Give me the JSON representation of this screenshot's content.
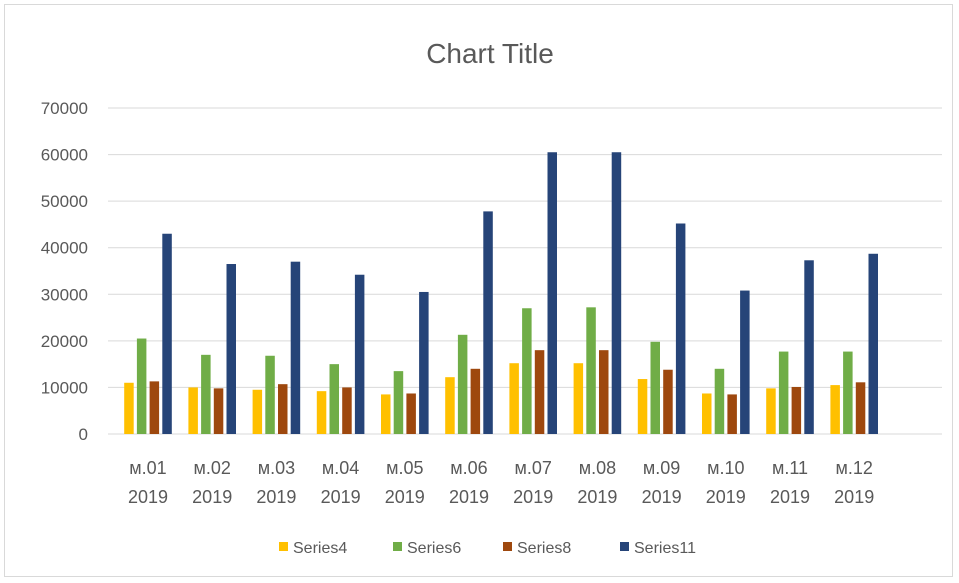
{
  "chart_data": {
    "type": "bar",
    "title": "Chart Title",
    "xlabel": "",
    "ylabel": "",
    "ylim": [
      0,
      70000
    ],
    "yticks": [
      0,
      10000,
      20000,
      30000,
      40000,
      50000,
      60000,
      70000
    ],
    "ytick_labels": [
      "0",
      "10000",
      "20000",
      "30000",
      "40000",
      "50000",
      "60000",
      "70000"
    ],
    "grid": true,
    "legend_position": "bottom",
    "categories": [
      [
        "м.01",
        "2019"
      ],
      [
        "м.02",
        "2019"
      ],
      [
        "м.03",
        "2019"
      ],
      [
        "м.04",
        "2019"
      ],
      [
        "м.05",
        "2019"
      ],
      [
        "м.06",
        "2019"
      ],
      [
        "м.07",
        "2019"
      ],
      [
        "м.08",
        "2019"
      ],
      [
        "м.09",
        "2019"
      ],
      [
        "м.10",
        "2019"
      ],
      [
        "м.11",
        "2019"
      ],
      [
        "м.12",
        "2019"
      ]
    ],
    "series": [
      {
        "name": "Series4",
        "color": "#FFC000",
        "values": [
          11000,
          10000,
          9500,
          9200,
          8500,
          12200,
          15200,
          15200,
          11800,
          8700,
          9800,
          10500
        ]
      },
      {
        "name": "Series6",
        "color": "#70AD47",
        "values": [
          20500,
          17000,
          16800,
          15000,
          13500,
          21300,
          27000,
          27200,
          19800,
          14000,
          17700,
          17700
        ]
      },
      {
        "name": "Series8",
        "color": "#9E480E",
        "values": [
          11300,
          9800,
          10700,
          10000,
          8700,
          14000,
          18000,
          18000,
          13800,
          8500,
          10100,
          11100
        ]
      },
      {
        "name": "Series11",
        "color": "#264478",
        "values": [
          43000,
          36500,
          37000,
          34200,
          30500,
          47800,
          60500,
          60500,
          45200,
          30800,
          37300,
          38700
        ]
      }
    ]
  }
}
